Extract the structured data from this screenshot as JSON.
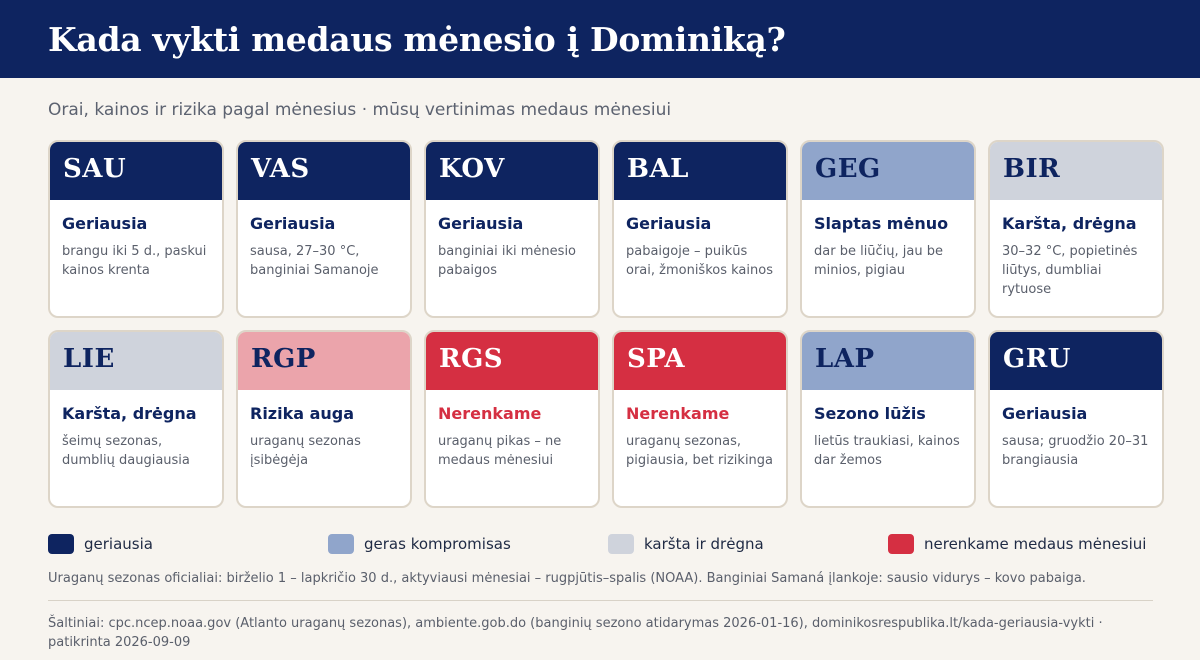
{
  "header": {
    "title": "Kada vykti medaus mėnesio į Dominiką?"
  },
  "subtitle": "Orai, kainos ir rizika pagal mėnesius · mūsų vertinimas medaus mėnesiui",
  "colors": {
    "best": "#0e2460",
    "compromise": "#90a5cb",
    "hot_humid": "#cfd3dc",
    "risk": "#eba4ab",
    "no": "#d52f42"
  },
  "months": [
    {
      "abbr": "SAU",
      "category": "best",
      "title": "Geriausia",
      "desc": "brangu iki 5 d., paskui kainos krenta"
    },
    {
      "abbr": "VAS",
      "category": "best",
      "title": "Geriausia",
      "desc": "sausa, 27–30 °C, banginiai Samanoje"
    },
    {
      "abbr": "KOV",
      "category": "best",
      "title": "Geriausia",
      "desc": "banginiai iki mėnesio pabaigos"
    },
    {
      "abbr": "BAL",
      "category": "best",
      "title": "Geriausia",
      "desc": "pabaigoje – puikūs orai, žmoniškos kainos"
    },
    {
      "abbr": "GEG",
      "category": "compromise",
      "title": "Slaptas mėnuo",
      "desc": "dar be liūčių, jau be minios, pigiau"
    },
    {
      "abbr": "BIR",
      "category": "hot_humid",
      "title": "Karšta, drėgna",
      "desc": "30–32 °C, popietinės liūtys, dumbliai rytuose"
    },
    {
      "abbr": "LIE",
      "category": "hot_humid",
      "title": "Karšta, drėgna",
      "desc": "šeimų sezonas, dumblių daugiausia"
    },
    {
      "abbr": "RGP",
      "category": "risk",
      "title": "Rizika auga",
      "desc": "uraganų sezonas įsibėgėja"
    },
    {
      "abbr": "RGS",
      "category": "no",
      "title": "Nerenkame",
      "desc": "uraganų pikas – ne medaus mėnesiui"
    },
    {
      "abbr": "SPA",
      "category": "no",
      "title": "Nerenkame",
      "desc": "uraganų sezonas, pigiausia, bet rizikinga"
    },
    {
      "abbr": "LAP",
      "category": "compromise",
      "title": "Sezono lūžis",
      "desc": "lietūs traukiasi, kainos dar žemos"
    },
    {
      "abbr": "GRU",
      "category": "best",
      "title": "Geriausia",
      "desc": "sausa; gruodžio 20–31 brangiausia"
    }
  ],
  "legend": [
    {
      "label": "geriausia",
      "color": "#0e2460"
    },
    {
      "label": "geras kompromisas",
      "color": "#90a5cb"
    },
    {
      "label": "karšta ir drėgna",
      "color": "#cfd3dc"
    },
    {
      "label": "nerenkame medaus mėnesiui",
      "color": "#d52f42"
    }
  ],
  "note": "Uraganų sezonas oficialiai: birželio 1 – lapkričio 30 d., aktyviausi mėnesiai – rugpjūtis–spalis (NOAA). Banginiai Samaná įlankoje: sausio vidurys – kovo pabaiga.",
  "sources": "Šaltiniai: cpc.ncep.noaa.gov (Atlanto uraganų sezonas), ambiente.gob.do (banginių sezono atidarymas 2026-01-16), dominikosrespublika.lt/kada-geriausia-vykti · patikrinta 2026-09-09"
}
